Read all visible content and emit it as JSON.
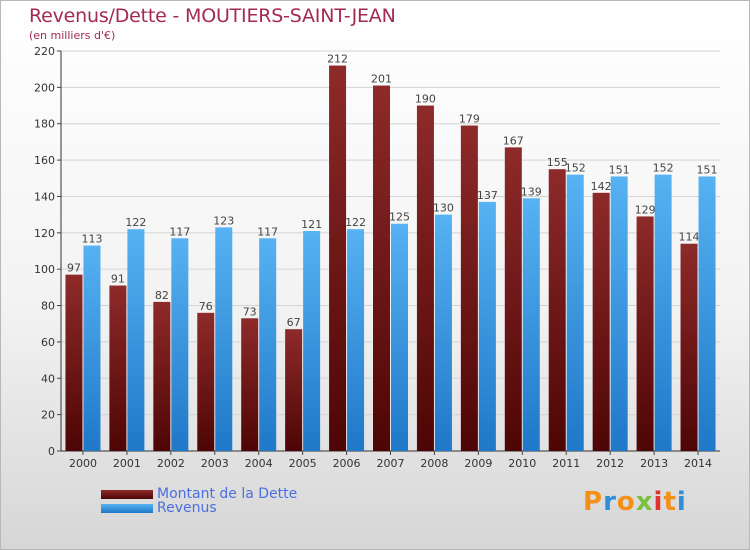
{
  "title": "Revenus/Dette - MOUTIERS-SAINT-JEAN",
  "subtitle": "(en milliers d'€)",
  "logo": {
    "text": "Proxiti",
    "colors": [
      "#f29018",
      "#2e8fd8",
      "#f29018",
      "#7ac043",
      "#e0312e",
      "#f29018",
      "#2e8fd8"
    ]
  },
  "chart_data": {
    "type": "bar",
    "categories": [
      "2000",
      "2001",
      "2002",
      "2003",
      "2004",
      "2005",
      "2006",
      "2007",
      "2008",
      "2009",
      "2010",
      "2011",
      "2012",
      "2013",
      "2014"
    ],
    "series": [
      {
        "name": "Montant de la Dette",
        "color": "#7a1717",
        "values": [
          97,
          91,
          82,
          76,
          73,
          67,
          212,
          201,
          190,
          179,
          167,
          155,
          142,
          129,
          114
        ]
      },
      {
        "name": "Revenus",
        "color": "#3fa0e8",
        "values": [
          113,
          122,
          117,
          123,
          117,
          121,
          122,
          125,
          130,
          137,
          139,
          152,
          151,
          152,
          151
        ]
      }
    ],
    "yticks": [
      0,
      20,
      40,
      60,
      80,
      100,
      120,
      140,
      160,
      180,
      200,
      220
    ],
    "ylim": [
      0,
      220
    ],
    "grid": true,
    "legend_position": "bottom-left"
  }
}
